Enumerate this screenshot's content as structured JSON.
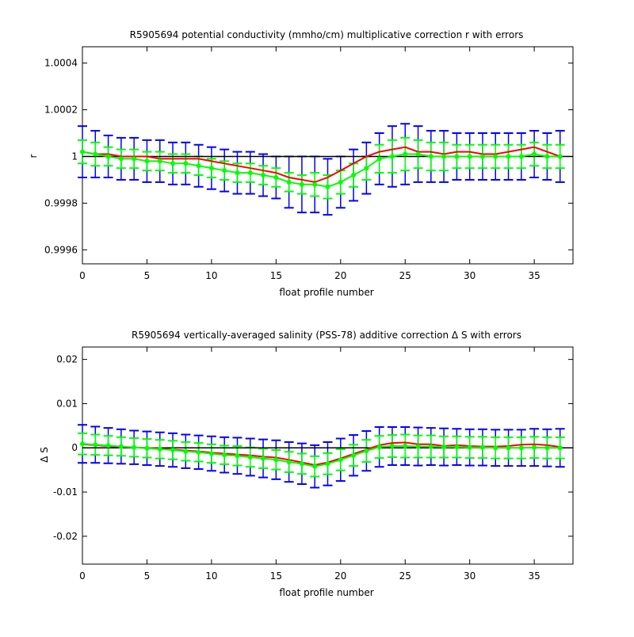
{
  "figure": {
    "background": "#ffffff"
  },
  "colors": {
    "error_outer": "#0000ff",
    "error_inner": "#00ff00",
    "red_line": "#ff0000",
    "green_line": "#00ff00",
    "zero_line": "#000000"
  },
  "chart_data": [
    {
      "type": "line",
      "title": "R5905694 potential conductivity (mmho/cm) multiplicative correction r with errors",
      "xlabel": "float profile number",
      "ylabel": "r",
      "xlim": [
        0,
        38
      ],
      "ylim": [
        0.99954,
        1.00047
      ],
      "xticks": [
        0,
        5,
        10,
        15,
        20,
        25,
        30,
        35
      ],
      "xtick_labels": [
        "0",
        "5",
        "10",
        "15",
        "20",
        "25",
        "30",
        "35"
      ],
      "yticks": [
        0.9996,
        0.9998,
        1,
        1.0002,
        1.0004
      ],
      "ytick_labels": [
        "0.9996",
        "0.9998",
        "1",
        "1.0002",
        "1.0004"
      ],
      "reference_line": 1,
      "grid": false,
      "x": [
        0,
        1,
        2,
        3,
        4,
        5,
        6,
        7,
        8,
        9,
        10,
        11,
        12,
        13,
        14,
        15,
        16,
        17,
        18,
        19,
        20,
        21,
        22,
        23,
        24,
        25,
        26,
        27,
        28,
        29,
        30,
        31,
        32,
        33,
        34,
        35,
        36,
        37
      ],
      "series": [
        {
          "color": "#ff0000",
          "values": [
            1.00002,
            1.00001,
            1.00001,
            1.0,
            1.0,
            1.0,
            0.99999,
            0.99999,
            0.99999,
            0.99999,
            0.99998,
            0.99997,
            0.99996,
            0.99995,
            0.99994,
            0.99993,
            0.99991,
            0.9999,
            0.99989,
            0.99991,
            0.99994,
            0.99997,
            1.0,
            1.00002,
            1.00003,
            1.00004,
            1.00002,
            1.00002,
            1.00001,
            1.00002,
            1.00002,
            1.00001,
            1.00001,
            1.00002,
            1.00003,
            1.00004,
            1.00002,
            1.0
          ]
        },
        {
          "color": "#00ff00",
          "values": [
            1.00002,
            1.00001,
            1.0,
            0.99999,
            0.99999,
            0.99998,
            0.99998,
            0.99997,
            0.99997,
            0.99996,
            0.99995,
            0.99994,
            0.99993,
            0.99993,
            0.99992,
            0.99991,
            0.99989,
            0.99988,
            0.99988,
            0.99987,
            0.99989,
            0.99992,
            0.99995,
            0.99999,
            1.0,
            1.00001,
            1.00001,
            1.0,
            1.0,
            1.0,
            1.0,
            1.0,
            1.0,
            1.0,
            1.0,
            1.00001,
            1.0,
            1.0
          ]
        }
      ],
      "error_bars": [
        {
          "color": "#0000ff",
          "halfwidth": [
            0.00011,
            0.0001,
            9e-05,
            9e-05,
            9e-05,
            9e-05,
            9e-05,
            9e-05,
            9e-05,
            9e-05,
            9e-05,
            9e-05,
            9e-05,
            9e-05,
            9e-05,
            9e-05,
            0.00011,
            0.00012,
            0.00012,
            0.00012,
            0.00011,
            0.00011,
            0.00011,
            0.00011,
            0.00013,
            0.00013,
            0.00012,
            0.00011,
            0.00011,
            0.0001,
            0.0001,
            0.0001,
            0.0001,
            0.0001,
            0.0001,
            0.0001,
            0.0001,
            0.00011
          ]
        },
        {
          "color": "#00ff00",
          "halfwidth": [
            5e-05,
            5e-05,
            4e-05,
            4e-05,
            4e-05,
            4e-05,
            4e-05,
            4e-05,
            4e-05,
            4e-05,
            4e-05,
            4e-05,
            4e-05,
            4e-05,
            4e-05,
            4e-05,
            4e-05,
            4e-05,
            5e-05,
            5e-05,
            5e-05,
            5e-05,
            5e-05,
            6e-05,
            7e-05,
            7e-05,
            6e-05,
            6e-05,
            6e-05,
            5e-05,
            5e-05,
            5e-05,
            5e-05,
            5e-05,
            5e-05,
            5e-05,
            5e-05,
            5e-05
          ]
        }
      ]
    },
    {
      "type": "line",
      "title": "R5905694 vertically-averaged salinity (PSS-78) additive correction Δ S with errors",
      "xlabel": "float profile number",
      "ylabel": "Δ S",
      "xlim": [
        0,
        38
      ],
      "ylim": [
        -0.0263,
        0.0228
      ],
      "xticks": [
        0,
        5,
        10,
        15,
        20,
        25,
        30,
        35
      ],
      "xtick_labels": [
        "0",
        "5",
        "10",
        "15",
        "20",
        "25",
        "30",
        "35"
      ],
      "yticks": [
        -0.02,
        -0.01,
        0,
        0.01,
        0.02
      ],
      "ytick_labels": [
        "-0.02",
        "-0.01",
        "0",
        "0.01",
        "0.02"
      ],
      "reference_line": 0,
      "grid": false,
      "x": [
        0,
        1,
        2,
        3,
        4,
        5,
        6,
        7,
        8,
        9,
        10,
        11,
        12,
        13,
        14,
        15,
        16,
        17,
        18,
        19,
        20,
        21,
        22,
        23,
        24,
        25,
        26,
        27,
        28,
        29,
        30,
        31,
        32,
        33,
        34,
        35,
        36,
        37
      ],
      "series": [
        {
          "color": "#ff0000",
          "values": [
            0.0008,
            0.0006,
            0.0004,
            0.0002,
            0.0001,
            0.0,
            -0.0002,
            -0.0004,
            -0.0006,
            -0.0008,
            -0.0011,
            -0.0013,
            -0.0015,
            -0.0017,
            -0.002,
            -0.0022,
            -0.0027,
            -0.0033,
            -0.0039,
            -0.0033,
            -0.0024,
            -0.0014,
            -0.0004,
            0.0006,
            0.0011,
            0.0012,
            0.0008,
            0.0008,
            0.0004,
            0.0006,
            0.0004,
            0.0003,
            0.0003,
            0.0004,
            0.0007,
            0.0008,
            0.0006,
            0.0002
          ]
        },
        {
          "color": "#00ff00",
          "values": [
            0.0009,
            0.0007,
            0.0005,
            0.0003,
            0.0001,
            -0.0001,
            -0.0003,
            -0.0005,
            -0.0008,
            -0.001,
            -0.0013,
            -0.0016,
            -0.0018,
            -0.0021,
            -0.0024,
            -0.0027,
            -0.0032,
            -0.0036,
            -0.0042,
            -0.0036,
            -0.0027,
            -0.0017,
            -0.0007,
            0.0002,
            0.0004,
            0.0004,
            0.0003,
            0.0003,
            0.0002,
            0.0002,
            0.0001,
            0.0001,
            0.0,
            0.0,
            0.0,
            0.0001,
            0.0,
            0.0
          ]
        }
      ],
      "error_bars": [
        {
          "color": "#0000ff",
          "halfwidth": [
            0.0043,
            0.0041,
            0.004,
            0.0039,
            0.0038,
            0.0038,
            0.0038,
            0.0038,
            0.0038,
            0.0038,
            0.0039,
            0.004,
            0.0041,
            0.0042,
            0.0043,
            0.0044,
            0.0045,
            0.0046,
            0.0048,
            0.0049,
            0.0048,
            0.0046,
            0.0045,
            0.0045,
            0.0043,
            0.0043,
            0.0043,
            0.0042,
            0.0042,
            0.0041,
            0.0041,
            0.0041,
            0.0041,
            0.0041,
            0.0041,
            0.0042,
            0.0042,
            0.0043
          ]
        },
        {
          "color": "#00ff00",
          "halfwidth": [
            0.0024,
            0.0023,
            0.0022,
            0.0021,
            0.0021,
            0.0021,
            0.0021,
            0.0021,
            0.0021,
            0.0021,
            0.0021,
            0.0021,
            0.0022,
            0.0022,
            0.0022,
            0.0022,
            0.0023,
            0.0023,
            0.0023,
            0.0024,
            0.0024,
            0.0024,
            0.0025,
            0.0025,
            0.0025,
            0.0026,
            0.0025,
            0.0025,
            0.0024,
            0.0024,
            0.0024,
            0.0024,
            0.0024,
            0.0024,
            0.0024,
            0.0024,
            0.0024,
            0.0024
          ]
        }
      ]
    }
  ]
}
